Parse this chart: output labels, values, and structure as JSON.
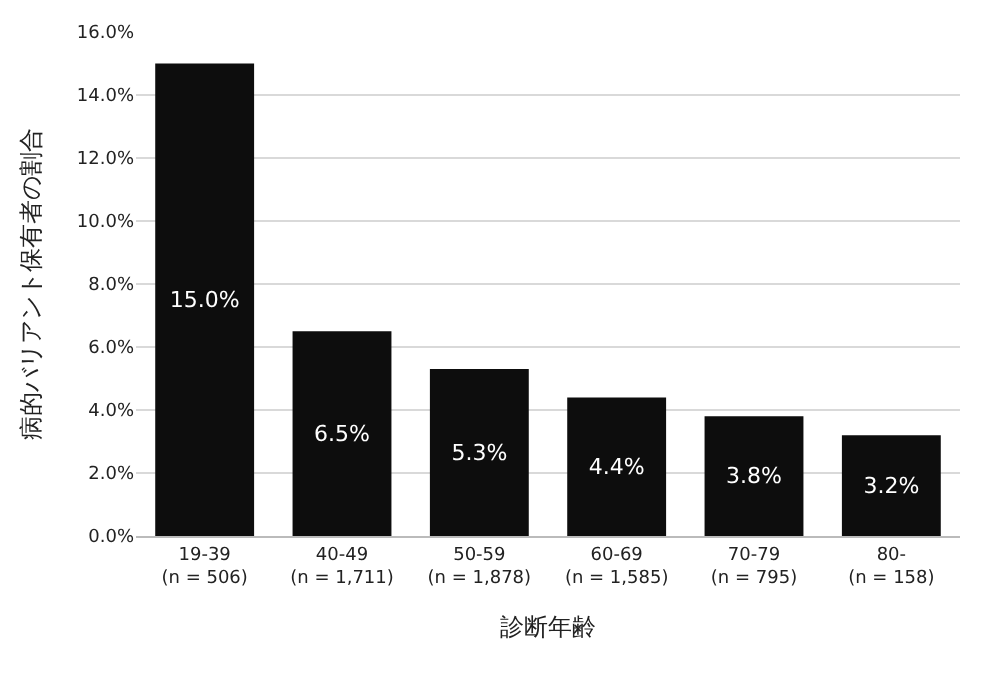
{
  "chart_data": {
    "type": "bar",
    "xlabel": "診断年齢",
    "ylabel": "病的バリアント保有者の割合",
    "categories": [
      "19-39\n(n = 506)",
      "40-49\n(n = 1,711)",
      "50-59\n(n = 1,878)",
      "60-69\n(n = 1,585)",
      "70-79\n(n = 795)",
      "80-\n(n = 158)"
    ],
    "values": [
      15.0,
      6.5,
      5.3,
      4.4,
      3.8,
      3.2
    ],
    "value_labels": [
      "15.0%",
      "6.5%",
      "5.3%",
      "4.4%",
      "3.8%",
      "3.2%"
    ],
    "color": "#0d0d0d",
    "ylim": [
      0,
      16
    ],
    "yticks": [
      {
        "value": 0,
        "label": "0.0%"
      },
      {
        "value": 2,
        "label": "2.0%"
      },
      {
        "value": 4,
        "label": "4.0%"
      },
      {
        "value": 6,
        "label": "6.0%"
      },
      {
        "value": 8,
        "label": "8.0%"
      },
      {
        "value": 10,
        "label": "10.0%"
      },
      {
        "value": 12,
        "label": "12.0%"
      },
      {
        "value": 14,
        "label": "14.0%"
      },
      {
        "value": 16,
        "label": "16.0%"
      }
    ],
    "grid": "y"
  }
}
